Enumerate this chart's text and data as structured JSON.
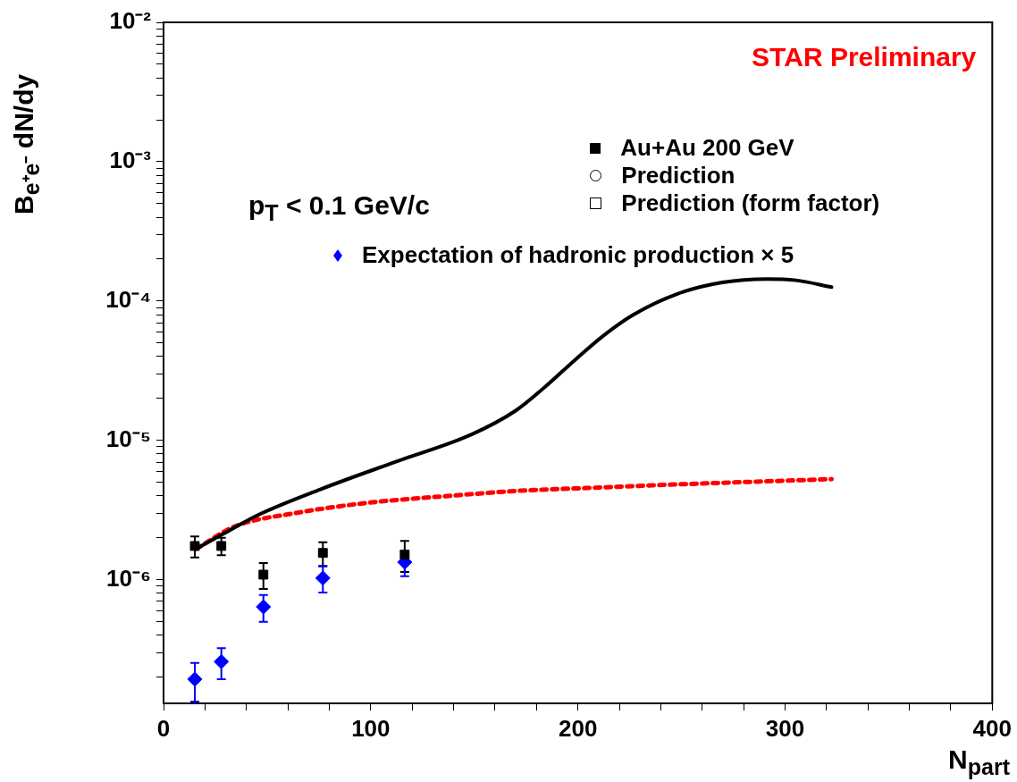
{
  "chart_data": {
    "type": "scatter",
    "xlabel": "N$_{part}$",
    "ylabel": "B$_{e⁺e⁻}$ dN/dy",
    "log": "y",
    "legend": "top right",
    "xlim": [
      0,
      400
    ],
    "xticks": [
      0,
      {
        "value": 20,
        "label": null
      },
      {
        "value": 40,
        "label": null
      },
      {
        "value": 60,
        "label": null
      },
      {
        "value": 80,
        "label": null
      },
      100,
      {
        "value": 120,
        "label": null
      },
      {
        "value": 140,
        "label": null
      },
      {
        "value": 160,
        "label": null
      },
      {
        "value": 180,
        "label": null
      },
      200,
      {
        "value": 220,
        "label": null
      },
      {
        "value": 240,
        "label": null
      },
      {
        "value": 260,
        "label": null
      },
      {
        "value": 280,
        "label": null
      },
      300,
      {
        "value": 320,
        "label": null
      },
      {
        "value": 340,
        "label": null
      },
      {
        "value": 360,
        "label": null
      },
      {
        "value": 380,
        "label": null
      },
      400
    ],
    "ylim": [
      1.3e-07,
      0.01
    ],
    "yticks": [
      {
        "value": 2e-07,
        "label": null
      },
      {
        "value": 3e-07,
        "label": null
      },
      {
        "value": 4e-07,
        "label": null
      },
      {
        "value": 5e-07,
        "label": null
      },
      {
        "value": 6e-07,
        "label": null
      },
      {
        "value": 7e-07,
        "label": null
      },
      {
        "value": 8e-07,
        "label": null
      },
      {
        "value": 9e-07,
        "label": null
      },
      {
        "value": 1e-06,
        "label": "10⁻⁶"
      },
      {
        "value": 2e-06,
        "label": null
      },
      {
        "value": 3e-06,
        "label": null
      },
      {
        "value": 4e-06,
        "label": null
      },
      {
        "value": 5e-06,
        "label": null
      },
      {
        "value": 6e-06,
        "label": null
      },
      {
        "value": 7e-06,
        "label": null
      },
      {
        "value": 8e-06,
        "label": null
      },
      {
        "value": 9e-06,
        "label": null
      },
      {
        "value": 1e-05,
        "label": "10⁻⁵"
      },
      {
        "value": 2e-05,
        "label": null
      },
      {
        "value": 3e-05,
        "label": null
      },
      {
        "value": 4e-05,
        "label": null
      },
      {
        "value": 5e-05,
        "label": null
      },
      {
        "value": 6e-05,
        "label": null
      },
      {
        "value": 7e-05,
        "label": null
      },
      {
        "value": 8e-05,
        "label": null
      },
      {
        "value": 9e-05,
        "label": null
      },
      {
        "value": 0.0001,
        "label": "10⁻⁴"
      },
      {
        "value": 0.0002,
        "label": null
      },
      {
        "value": 0.0003,
        "label": null
      },
      {
        "value": 0.0004,
        "label": null
      },
      {
        "value": 0.0005,
        "label": null
      },
      {
        "value": 0.0006,
        "label": null
      },
      {
        "value": 0.0007,
        "label": null
      },
      {
        "value": 0.0008,
        "label": null
      },
      {
        "value": 0.0009,
        "label": null
      },
      {
        "value": 0.001,
        "label": "10⁻³"
      },
      {
        "value": 0.002,
        "label": null
      },
      {
        "value": 0.003,
        "label": null
      },
      {
        "value": 0.004,
        "label": null
      },
      {
        "value": 0.005,
        "label": null
      },
      {
        "value": 0.006,
        "label": null
      },
      {
        "value": 0.007,
        "label": null
      },
      {
        "value": 0.008,
        "label": null
      },
      {
        "value": 0.009,
        "label": null
      },
      {
        "value": 0.01,
        "label": "10⁻²"
      }
    ],
    "series": [
      {
        "type": "line",
        "color": "#000000",
        "marker": "none",
        "line_style": "solid",
        "x": [
          15.8,
          28.7,
          45.8,
          75.7,
          112.8,
          148.4,
          169.8,
          184.1,
          198.4,
          212.6,
          226.9,
          248.3,
          269.7,
          291,
          305.3,
          322.4
        ],
        "values": [
          1.67e-06,
          2.13e-06,
          2.93e-06,
          4.46e-06,
          7.1e-06,
          1.1e-05,
          1.63e-05,
          2.42e-05,
          3.76e-05,
          5.69e-05,
          8e-05,
          0.000113,
          0.000136,
          0.000144,
          0.000141,
          0.000126
        ]
      },
      {
        "type": "line",
        "color": "#ff0000",
        "marker": "none",
        "line_style": "dotted",
        "x": [
          15.8,
          34.4,
          62.9,
          98.5,
          141.3,
          169.8,
          204.1,
          241.2,
          322.4
        ],
        "values": [
          1.67e-06,
          2.42e-06,
          3e-06,
          3.57e-06,
          4.04e-06,
          4.34e-06,
          4.56e-06,
          4.8e-06,
          5.28e-06
        ]
      },
      {
        "name": "Au+Au 200 GeV",
        "color": "#000000",
        "marker": "square",
        "x": [
          15.1,
          27.9,
          48.2,
          76.9,
          116.4
        ],
        "values": [
          1.75e-06,
          1.75e-06,
          1.09e-06,
          1.56e-06,
          1.52e-06
        ],
        "errors": [
          3e-07,
          2.5e-07,
          2.3e-07,
          3e-07,
          3.8e-07
        ]
      },
      {
        "name": "Expectation of hadronic production × 5",
        "color": "#0000ff",
        "marker": "diamond",
        "x": [
          15.1,
          27.9,
          48.2,
          76.9,
          116.4
        ],
        "values": [
          1.94e-07,
          2.59e-07,
          6.4e-07,
          1.03e-06,
          1.34e-06
        ],
        "errors": [
          6e-08,
          6.5e-08,
          1.4e-07,
          2.2e-07,
          2.8e-07
        ]
      }
    ],
    "annotations": [
      "STAR Preliminary",
      "p$_{T}$ < 0.1 GeV/c",
      "Prediction",
      "Prediction (form factor)"
    ]
  }
}
